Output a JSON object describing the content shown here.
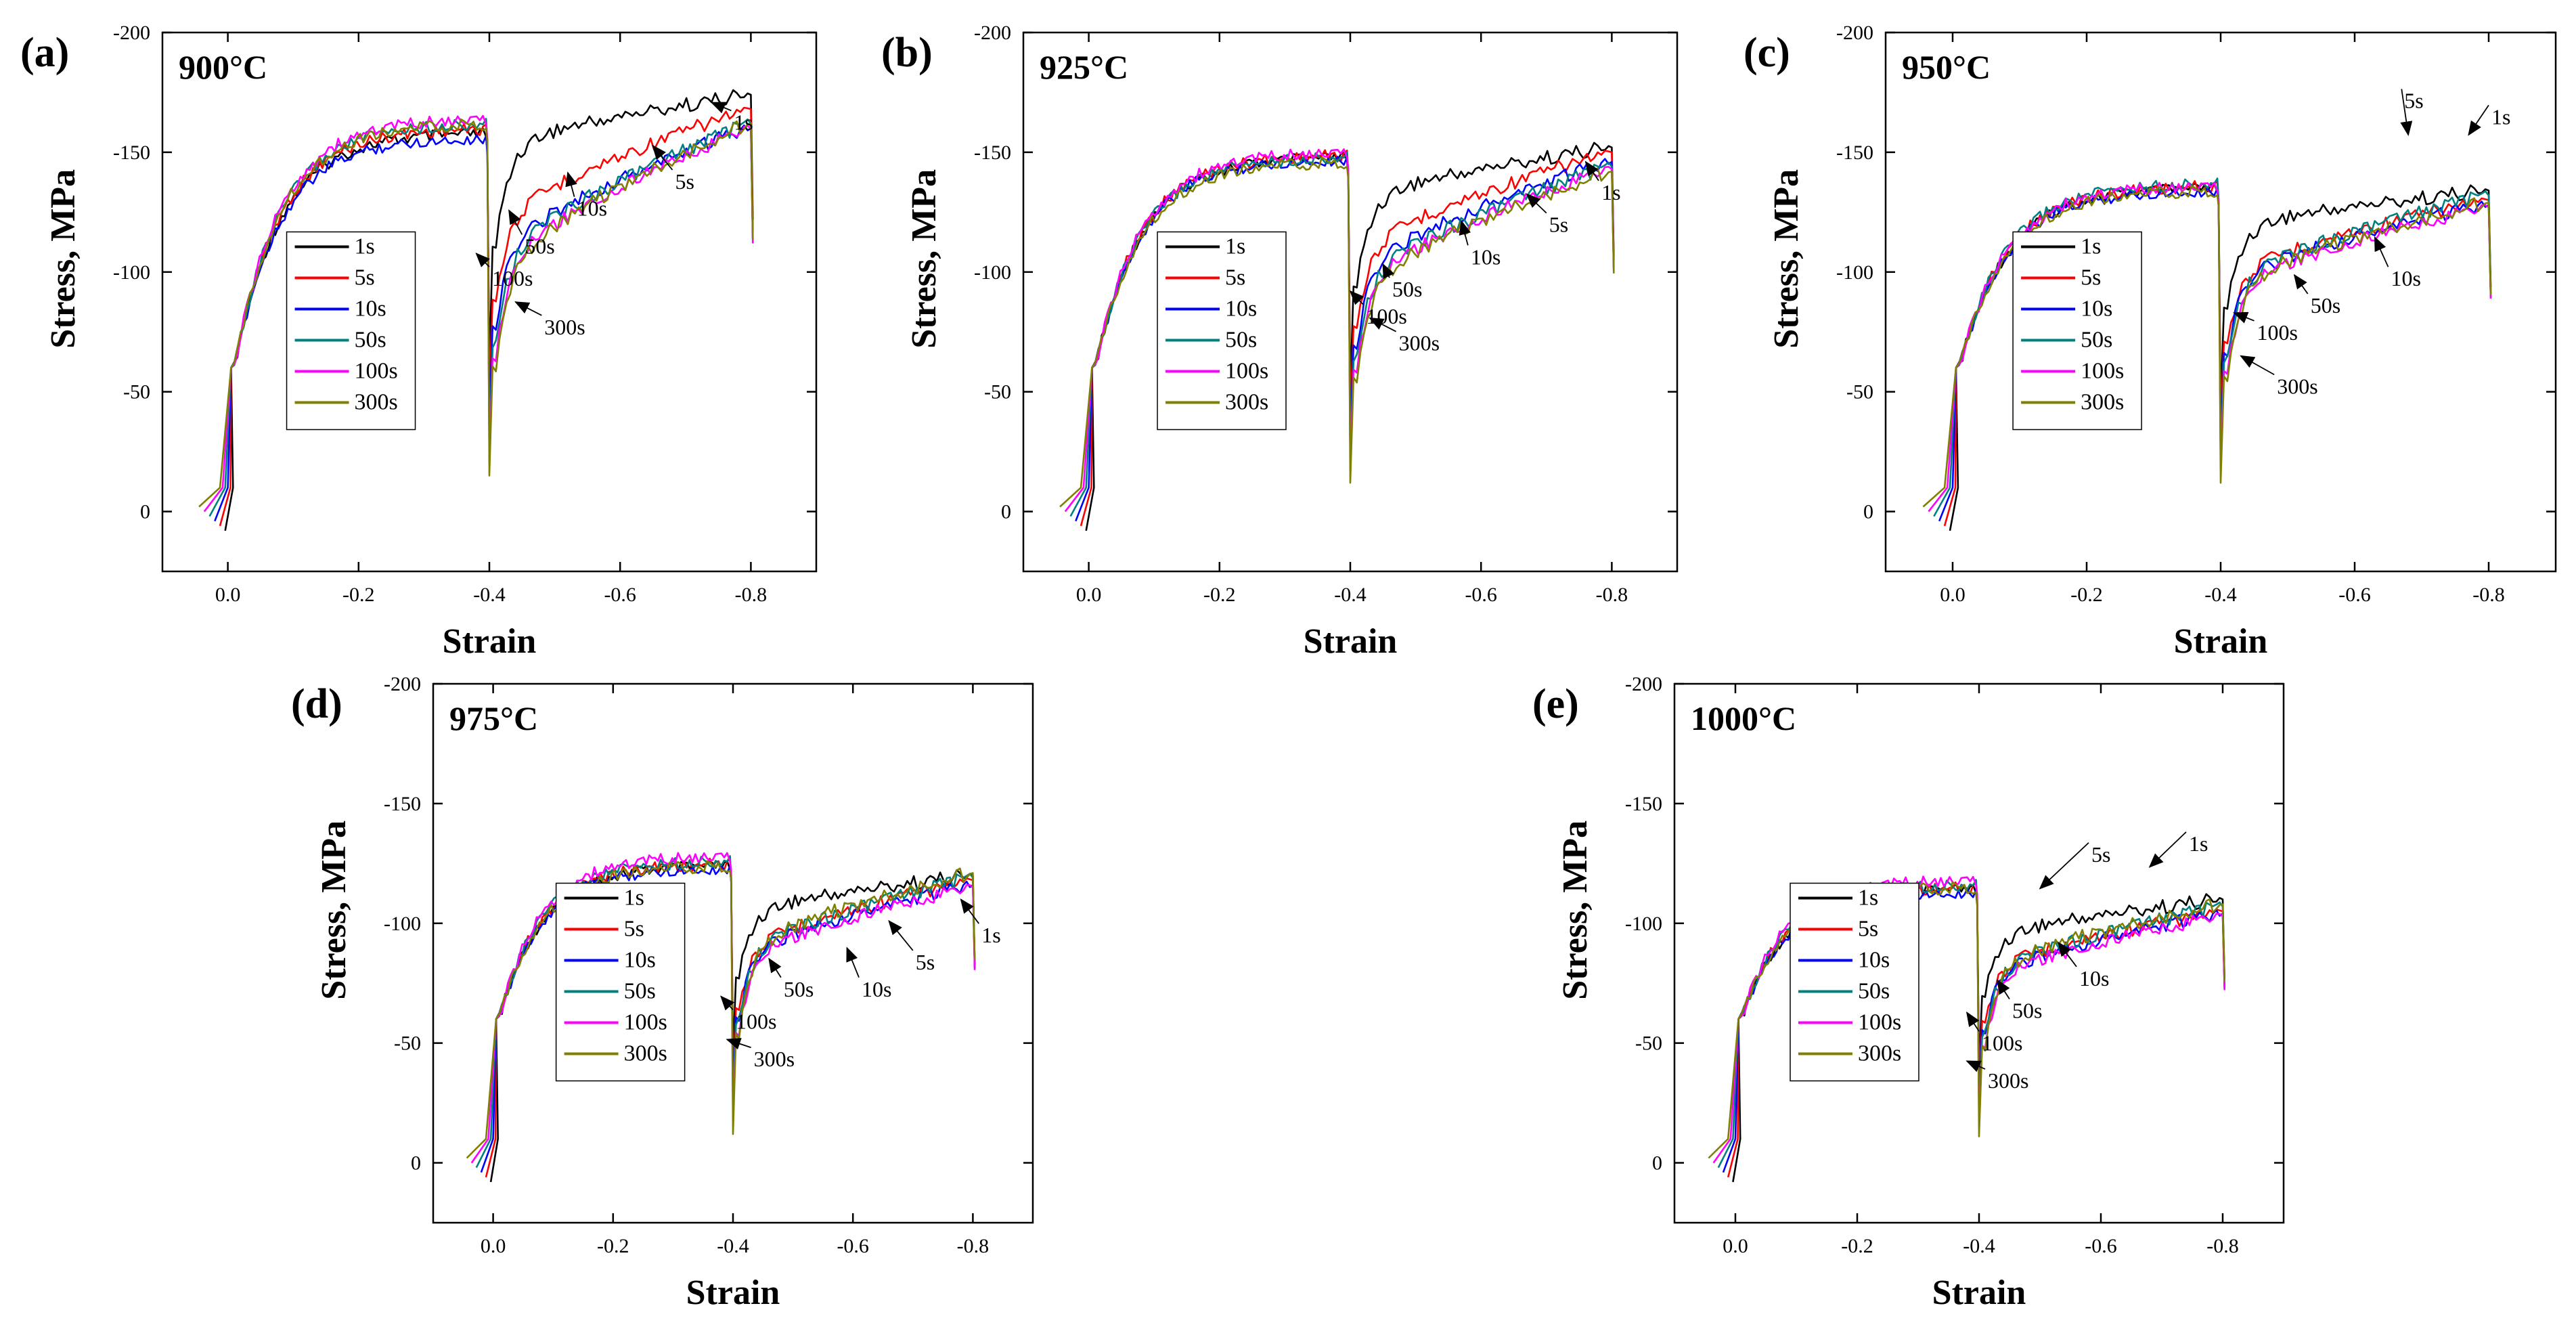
{
  "chart_data": [
    {
      "type": "line",
      "panel_label": "(a)",
      "title": "900°C",
      "xlabel": "Strain",
      "ylabel": "Stress, MPa",
      "xlim": [
        0.1,
        -0.9
      ],
      "ylim": [
        25,
        -200
      ],
      "xticks": [
        0.0,
        -0.2,
        -0.4,
        -0.6,
        -0.8
      ],
      "xtick_labels": [
        "0.0",
        "-0.2",
        "-0.4",
        "-0.6",
        "-0.8"
      ],
      "yticks": [
        0,
        -50,
        -100,
        -150,
        -200
      ],
      "ytick_labels": [
        "0",
        "-50",
        "-100",
        "-150",
        "-200"
      ],
      "legend_position": "center-left",
      "series": [
        {
          "name": "1s",
          "color": "#000000",
          "first_peak": -158,
          "interpass_drop": -60,
          "second_end": -174,
          "second_knee": -152
        },
        {
          "name": "5s",
          "color": "#ff0000",
          "first_peak": -160,
          "interpass_drop": -50,
          "second_end": -168,
          "second_knee": -120
        },
        {
          "name": "10s",
          "color": "#0000ff",
          "first_peak": -156,
          "interpass_drop": -40,
          "second_end": -160,
          "second_knee": -108
        },
        {
          "name": "50s",
          "color": "#008080",
          "first_peak": -162,
          "interpass_drop": -25,
          "second_end": -162,
          "second_knee": -104
        },
        {
          "name": "100s",
          "color": "#ff00ff",
          "first_peak": -164,
          "interpass_drop": -20,
          "second_end": -160,
          "second_knee": -100
        },
        {
          "name": "300s",
          "color": "#808000",
          "first_peak": -162,
          "interpass_drop": -15,
          "second_end": -162,
          "second_knee": -98
        }
      ],
      "annotations": [
        "1s",
        "5s",
        "10s",
        "50s",
        "100s",
        "300s"
      ]
    },
    {
      "type": "line",
      "panel_label": "(b)",
      "title": "925°C",
      "xlabel": "Strain",
      "ylabel": "Stress, MPa",
      "xlim": [
        0.1,
        -0.9
      ],
      "ylim": [
        25,
        -200
      ],
      "xticks": [
        0.0,
        -0.2,
        -0.4,
        -0.6,
        -0.8
      ],
      "xtick_labels": [
        "0.0",
        "-0.2",
        "-0.4",
        "-0.6",
        "-0.8"
      ],
      "yticks": [
        0,
        -50,
        -100,
        -150,
        -200
      ],
      "ytick_labels": [
        "0",
        "-50",
        "-100",
        "-150",
        "-200"
      ],
      "legend_position": "center",
      "series": [
        {
          "name": "1s",
          "color": "#000000",
          "first_peak": -148,
          "interpass_drop": -50,
          "second_end": -152,
          "second_knee": -130
        },
        {
          "name": "5s",
          "color": "#ff0000",
          "first_peak": -149,
          "interpass_drop": -40,
          "second_end": -150,
          "second_knee": -108
        },
        {
          "name": "10s",
          "color": "#0000ff",
          "first_peak": -147,
          "interpass_drop": -32,
          "second_end": -146,
          "second_knee": -100
        },
        {
          "name": "50s",
          "color": "#008080",
          "first_peak": -148,
          "interpass_drop": -22,
          "second_end": -144,
          "second_knee": -96
        },
        {
          "name": "100s",
          "color": "#ff00ff",
          "first_peak": -150,
          "interpass_drop": -18,
          "second_end": -143,
          "second_knee": -93
        },
        {
          "name": "300s",
          "color": "#808000",
          "first_peak": -146,
          "interpass_drop": -12,
          "second_end": -142,
          "second_knee": -92
        }
      ],
      "annotations": [
        "1s",
        "5s",
        "10s",
        "50s",
        "100s",
        "300s"
      ]
    },
    {
      "type": "line",
      "panel_label": "(c)",
      "title": "950°C",
      "xlabel": "Strain",
      "ylabel": "Stress, MPa",
      "xlim": [
        0.1,
        -0.9
      ],
      "ylim": [
        25,
        -200
      ],
      "xticks": [
        0.0,
        -0.2,
        -0.4,
        -0.6,
        -0.8
      ],
      "xtick_labels": [
        "0.0",
        "-0.2",
        "-0.4",
        "-0.6",
        "-0.8"
      ],
      "yticks": [
        0,
        -50,
        -100,
        -150,
        -200
      ],
      "ytick_labels": [
        "0",
        "-50",
        "-100",
        "-150",
        "-200"
      ],
      "legend_position": "center-left",
      "series": [
        {
          "name": "1s",
          "color": "#000000",
          "first_peak": -135,
          "interpass_drop": -45,
          "second_end": -134,
          "second_knee": -118
        },
        {
          "name": "5s",
          "color": "#ff0000",
          "first_peak": -136,
          "interpass_drop": -38,
          "second_end": -130,
          "second_knee": -98
        },
        {
          "name": "10s",
          "color": "#0000ff",
          "first_peak": -134,
          "interpass_drop": -30,
          "second_end": -128,
          "second_knee": -96
        },
        {
          "name": "50s",
          "color": "#008080",
          "first_peak": -137,
          "interpass_drop": -22,
          "second_end": -132,
          "second_knee": -95
        },
        {
          "name": "100s",
          "color": "#ff00ff",
          "first_peak": -136,
          "interpass_drop": -18,
          "second_end": -127,
          "second_knee": -92
        },
        {
          "name": "300s",
          "color": "#808000",
          "first_peak": -134,
          "interpass_drop": -12,
          "second_end": -129,
          "second_knee": -93
        }
      ],
      "annotations": [
        "5s",
        "1s",
        "10s",
        "50s",
        "100s",
        "300s"
      ]
    },
    {
      "type": "line",
      "panel_label": "(d)",
      "title": "975°C",
      "xlabel": "Strain",
      "ylabel": "Stress, MPa",
      "xlim": [
        0.1,
        -0.9
      ],
      "ylim": [
        25,
        -200
      ],
      "xticks": [
        0.0,
        -0.2,
        -0.4,
        -0.6,
        -0.8
      ],
      "xtick_labels": [
        "0.0",
        "-0.2",
        "-0.4",
        "-0.6",
        "-0.8"
      ],
      "yticks": [
        0,
        -50,
        -100,
        -150,
        -200
      ],
      "ytick_labels": [
        "0",
        "-50",
        "-100",
        "-150",
        "-200"
      ],
      "legend_position": "center",
      "series": [
        {
          "name": "1s",
          "color": "#000000",
          "first_peak": -124,
          "interpass_drop": -45,
          "second_end": -120,
          "second_knee": -104
        },
        {
          "name": "5s",
          "color": "#ff0000",
          "first_peak": -125,
          "interpass_drop": -36,
          "second_end": -118,
          "second_knee": -88
        },
        {
          "name": "10s",
          "color": "#0000ff",
          "first_peak": -123,
          "interpass_drop": -30,
          "second_end": -116,
          "second_knee": -86
        },
        {
          "name": "50s",
          "color": "#008080",
          "first_peak": -126,
          "interpass_drop": -22,
          "second_end": -119,
          "second_knee": -87
        },
        {
          "name": "100s",
          "color": "#ff00ff",
          "first_peak": -128,
          "interpass_drop": -18,
          "second_end": -115,
          "second_knee": -84
        },
        {
          "name": "300s",
          "color": "#808000",
          "first_peak": -124,
          "interpass_drop": -12,
          "second_end": -121,
          "second_knee": -88
        }
      ],
      "annotations": [
        "1s",
        "5s",
        "10s",
        "50s",
        "100s",
        "300s"
      ]
    },
    {
      "type": "line",
      "panel_label": "(e)",
      "title": "1000°C",
      "xlabel": "Strain",
      "ylabel": "Stress, MPa",
      "xlim": [
        0.1,
        -0.9
      ],
      "ylim": [
        25,
        -200
      ],
      "xticks": [
        0.0,
        -0.2,
        -0.4,
        -0.6,
        -0.8
      ],
      "xtick_labels": [
        "0.0",
        "-0.2",
        "-0.4",
        "-0.6",
        "-0.8"
      ],
      "yticks": [
        0,
        -50,
        -100,
        -150,
        -200
      ],
      "ytick_labels": [
        "0",
        "-50",
        "-100",
        "-150",
        "-200"
      ],
      "legend_position": "center-left",
      "series": [
        {
          "name": "1s",
          "color": "#000000",
          "first_peak": -114,
          "interpass_drop": -40,
          "second_end": -110,
          "second_knee": -94
        },
        {
          "name": "5s",
          "color": "#ff0000",
          "first_peak": -115,
          "interpass_drop": -34,
          "second_end": -105,
          "second_knee": -80
        },
        {
          "name": "10s",
          "color": "#0000ff",
          "first_peak": -113,
          "interpass_drop": -28,
          "second_end": -104,
          "second_knee": -78
        },
        {
          "name": "50s",
          "color": "#008080",
          "first_peak": -116,
          "interpass_drop": -20,
          "second_end": -107,
          "second_knee": -79
        },
        {
          "name": "100s",
          "color": "#ff00ff",
          "first_peak": -118,
          "interpass_drop": -16,
          "second_end": -103,
          "second_knee": -76
        },
        {
          "name": "300s",
          "color": "#808000",
          "first_peak": -115,
          "interpass_drop": -11,
          "second_end": -108,
          "second_knee": -80
        }
      ],
      "annotations": [
        "5s",
        "1s",
        "10s",
        "50s",
        "100s",
        "300s"
      ]
    }
  ]
}
